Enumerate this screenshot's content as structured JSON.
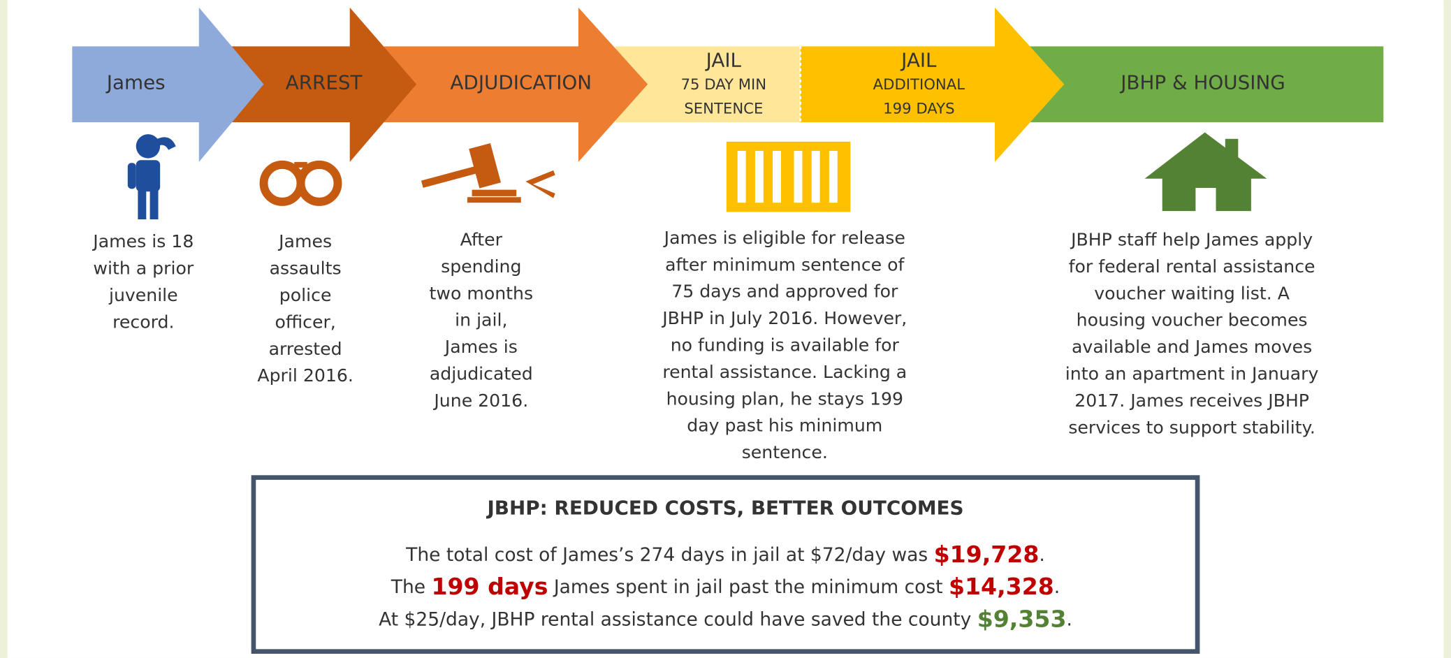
{
  "stages": [
    {
      "label_lines": [
        "James"
      ],
      "color": "#8eaadb",
      "description_lines": [
        "James is 18",
        "with a prior",
        "juvenile",
        "record."
      ]
    },
    {
      "label_lines": [
        "ARREST"
      ],
      "color": "#c55a11",
      "description_lines": [
        "James",
        "assaults",
        "police",
        "officer,",
        "arrested",
        "April 2016."
      ]
    },
    {
      "label_lines": [
        "ADJUDICATION"
      ],
      "color": "#ed7d31",
      "description_lines": [
        "After",
        "spending",
        "two months",
        "in jail,",
        "James is",
        "adjudicated",
        "June 2016."
      ]
    },
    {
      "label_lines": [
        "JAIL",
        "75 DAY MIN",
        "SENTENCE"
      ],
      "color": "#ffe699",
      "description_lines": [
        "James is eligible for release",
        "after minimum sentence of",
        "75 days and approved for",
        "JBHP in July 2016. However,",
        "no funding is available for",
        "rental assistance. Lacking a",
        "housing plan, he stays 199",
        "day past his minimum",
        "sentence."
      ]
    },
    {
      "label_lines": [
        "JAIL",
        "ADDITIONAL",
        "199 DAYS"
      ],
      "color": "#ffc000"
    },
    {
      "label_lines": [
        "JBHP & HOUSING"
      ],
      "color": "#70ad47",
      "description_lines": [
        "JBHP staff help James apply",
        "for federal rental assistance",
        "voucher waiting list. A",
        "housing voucher becomes",
        "available and James moves",
        "into an apartment in January",
        "2017. James receives JBHP",
        "services to support stability."
      ]
    }
  ],
  "summary": {
    "title": "JBHP: REDUCED COSTS, BETTER OUTCOMES",
    "lines": [
      [
        {
          "text": "The total cost of James’s 274 days in jail at $72/day was "
        },
        {
          "text": "$19,728",
          "color": "#c00000"
        },
        {
          "text": "."
        }
      ],
      [
        {
          "text": "The "
        },
        {
          "text": "199 days",
          "color": "#c00000"
        },
        {
          "text": " James spent in jail past the minimum cost "
        },
        {
          "text": "$14,328",
          "color": "#c00000"
        },
        {
          "text": "."
        }
      ],
      [
        {
          "text": "At $25/day, JBHP rental assistance could have saved the county "
        },
        {
          "text": "$9,353",
          "color": "#548235"
        },
        {
          "text": "."
        }
      ]
    ]
  }
}
